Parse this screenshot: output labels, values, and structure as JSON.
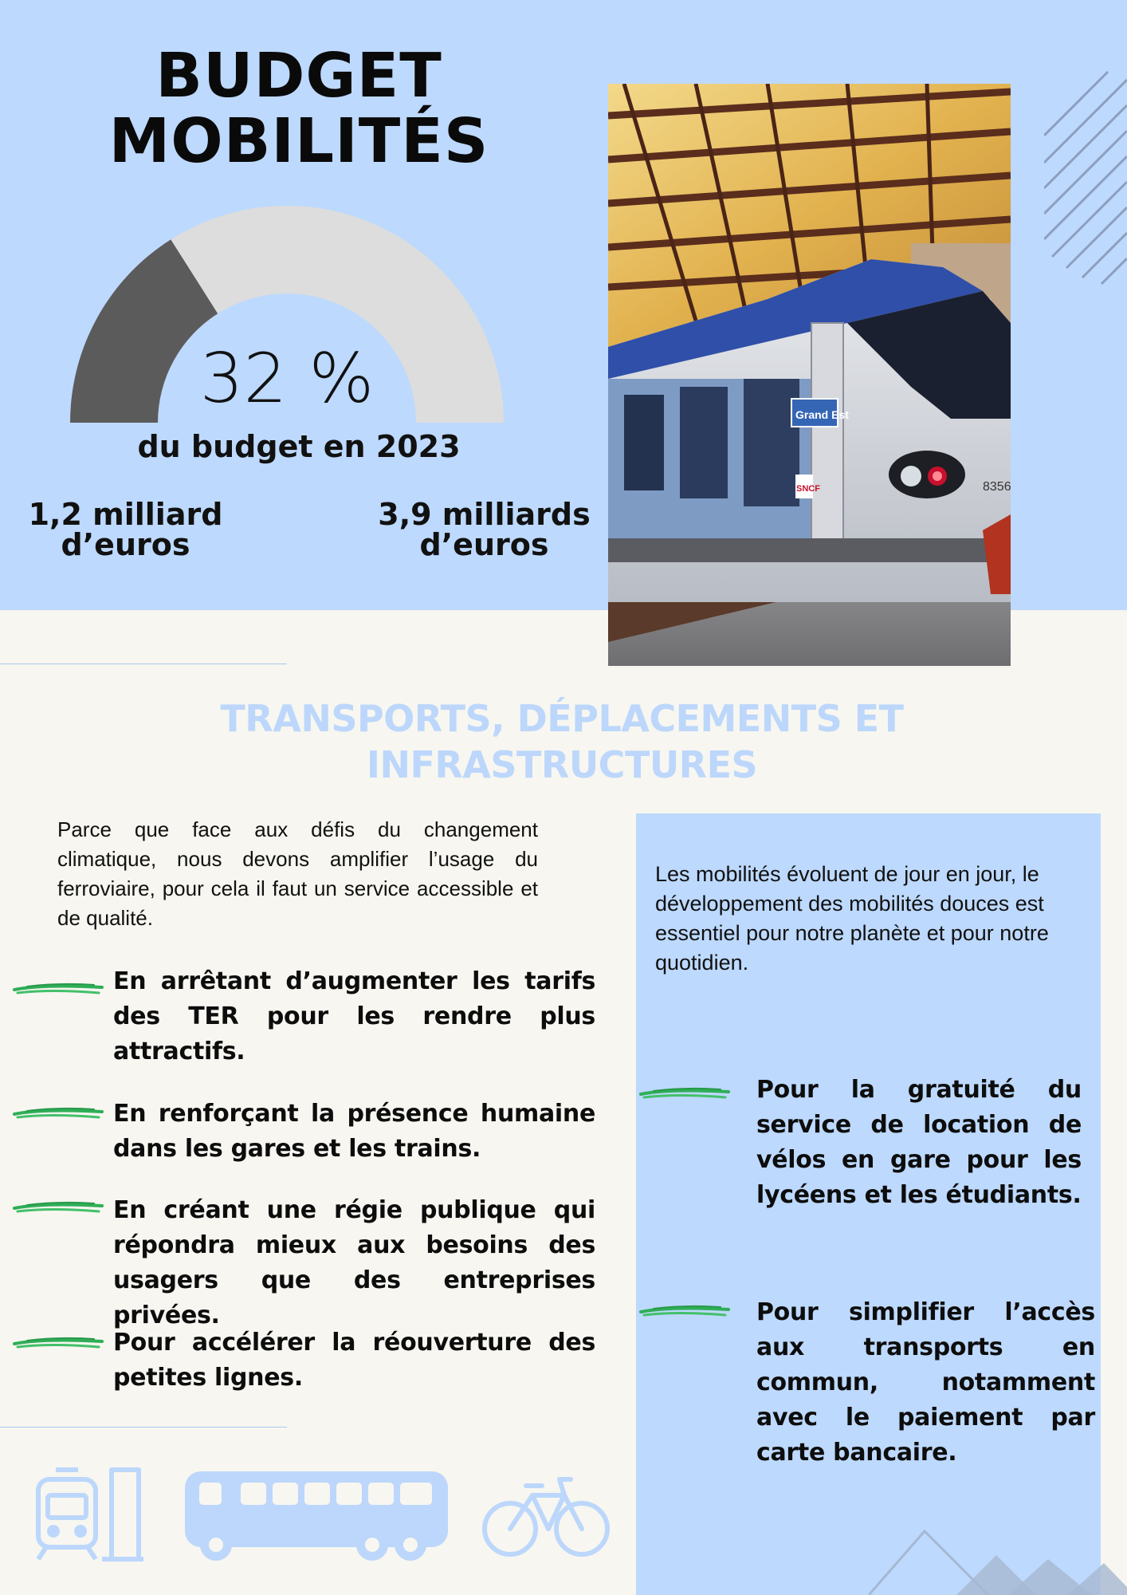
{
  "header": {
    "title_line1": "BUDGET",
    "title_line2": "MOBILITÉS"
  },
  "budget_gauge": {
    "percent_value": 32,
    "percent_label": "32 %",
    "caption": "du budget en 2023",
    "filled_color": "#5b5b5b",
    "remaining_color": "#dddddd"
  },
  "amounts": {
    "left_line1": "1,2 milliard",
    "left_line2": "d’euros",
    "right_line1": "3,9 milliards",
    "right_line2": "d’euros"
  },
  "section": {
    "title_line1": "TRANSPORTS, DÉPLACEMENTS ET",
    "title_line2": "INFRASTRUCTURES"
  },
  "left_column": {
    "intro": "Parce que face aux défis du changement climatique, nous devons amplifier l’usage du ferroviaire, pour cela il faut un service accessible et de qualité.",
    "bullets": [
      "En arrêtant d’augmenter les tarifs des TER pour les rendre plus attractifs.",
      "En renforçant la présence humaine dans les gares et les trains.",
      "En créant une régie publique qui répondra mieux aux besoins des usagers que des entreprises privées.",
      "Pour accélérer la réouverture des petites lignes."
    ]
  },
  "right_column": {
    "intro": "Les mobilités évoluent de jour en jour, le développement des mobilités douces est essentiel pour notre planète et pour notre quotidien.",
    "bullets": [
      "Pour la gratuité du service de location de vélos en gare pour les lycéens et les étudiants.",
      "Pour simplifier l’accès aux transports en commun, notamment avec le paiement par carte bancaire."
    ]
  },
  "photo": {
    "train_badge": "Grand Est",
    "operator": "SNCF",
    "train_number": "8356"
  },
  "icons": [
    "train-icon",
    "bus-icon",
    "bicycle-icon"
  ],
  "colors": {
    "band": "#bdd9fd",
    "background": "#f7f6f0",
    "brush": "#2fae57",
    "icon": "#bcd7fb"
  }
}
